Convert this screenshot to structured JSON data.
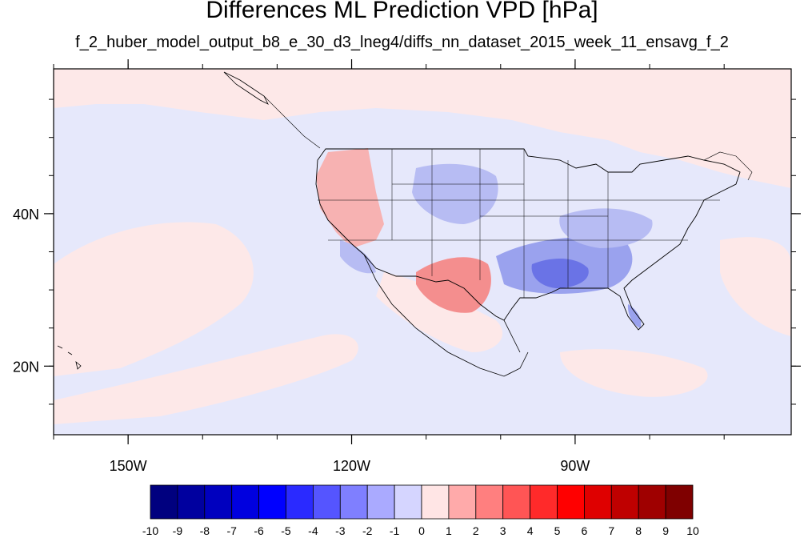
{
  "title": "Differences ML Prediction VPD [hPa]",
  "subtitle": "f_2_huber_model_output_b8_e_30_d3_lneg4/diffs_nn_dataset_2015_week_11_ensavg_f_2",
  "map": {
    "lon_range": [
      -160,
      -61
    ],
    "lat_range": [
      11,
      59
    ],
    "lon_ticks": [
      {
        "value": -150,
        "label": "150W"
      },
      {
        "value": -120,
        "label": "120W"
      },
      {
        "value": -90,
        "label": "90W"
      }
    ],
    "lat_ticks": [
      {
        "value": 40,
        "label": "40N"
      },
      {
        "value": 20,
        "label": "20N"
      }
    ],
    "background_colors": {
      "slight_positive": "#fde8e8",
      "slight_negative": "#e6e8fb"
    }
  },
  "colorbar": {
    "labels": [
      "-10",
      "-9",
      "-8",
      "-7",
      "-6",
      "-5",
      "-4",
      "-3",
      "-2",
      "-1",
      "0",
      "1",
      "2",
      "3",
      "4",
      "5",
      "6",
      "7",
      "8",
      "9",
      "10"
    ],
    "colors": [
      "#00007f",
      "#00009f",
      "#0000bf",
      "#0000df",
      "#0000ff",
      "#2a2aff",
      "#5555ff",
      "#7f7fff",
      "#aaaaff",
      "#d5d5ff",
      "#ffe5e5",
      "#ffaaaa",
      "#ff7f7f",
      "#ff5555",
      "#ff2a2a",
      "#ff0000",
      "#df0000",
      "#bf0000",
      "#9f0000",
      "#7f0000"
    ]
  }
}
